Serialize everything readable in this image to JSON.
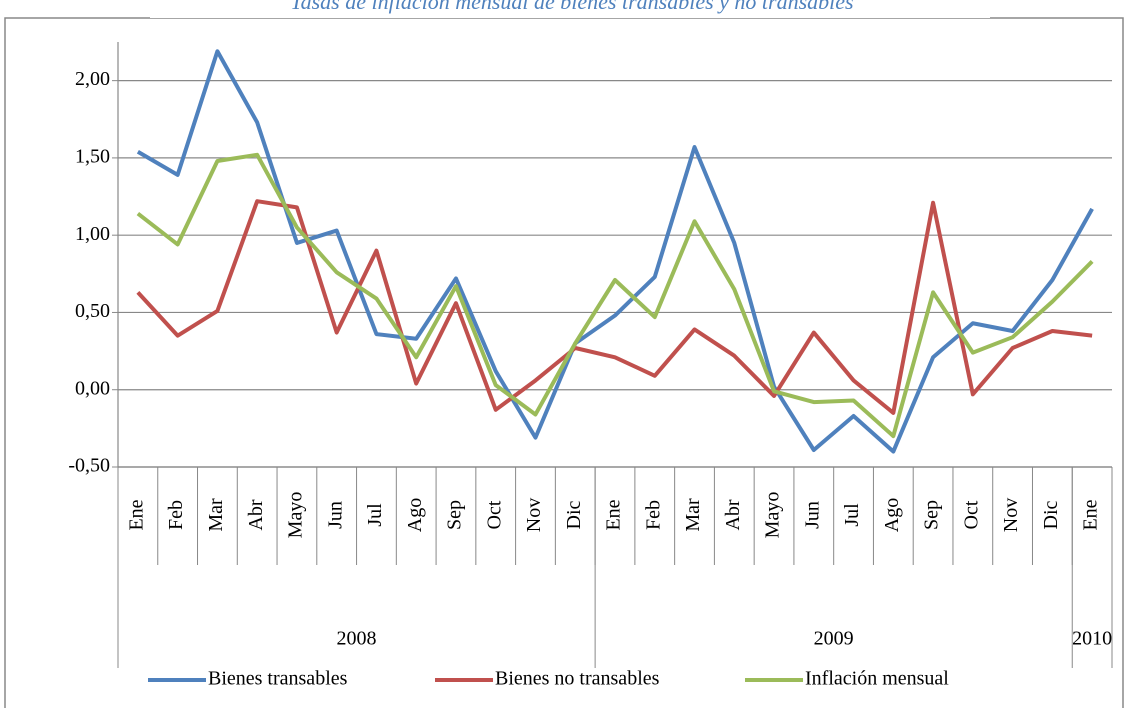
{
  "chart_data": {
    "type": "line",
    "title": "Tasas de inflación mensual de bienes transables y no transables",
    "categories": [
      "Ene",
      "Feb",
      "Mar",
      "Abr",
      "Mayo",
      "Jun",
      "Jul",
      "Ago",
      "Sep",
      "Oct",
      "Nov",
      "Dic",
      "Ene",
      "Feb",
      "Mar",
      "Abr",
      "Mayo",
      "Jun",
      "Jul",
      "Ago",
      "Sep",
      "Oct",
      "Nov",
      "Dic",
      "Ene"
    ],
    "year_groups": [
      {
        "label": "2008",
        "span": 12
      },
      {
        "label": "2009",
        "span": 12
      },
      {
        "label": "2010",
        "span": 1
      }
    ],
    "series": [
      {
        "name": "Bienes transables",
        "color": "#4f81bd",
        "values": [
          1.54,
          1.39,
          2.19,
          1.73,
          0.95,
          1.03,
          0.36,
          0.33,
          0.72,
          0.12,
          -0.31,
          0.3,
          0.48,
          0.73,
          1.57,
          0.95,
          0.02,
          -0.39,
          -0.17,
          -0.4,
          0.21,
          0.43,
          0.38,
          0.71,
          1.17
        ]
      },
      {
        "name": "Bienes no transables",
        "color": "#c0504d",
        "values": [
          0.63,
          0.35,
          0.51,
          1.22,
          1.18,
          0.37,
          0.9,
          0.04,
          0.56,
          -0.13,
          0.06,
          0.27,
          0.21,
          0.09,
          0.39,
          0.22,
          -0.04,
          0.37,
          0.06,
          -0.15,
          1.21,
          -0.03,
          0.27,
          0.38,
          0.35
        ]
      },
      {
        "name": "Inflación mensual",
        "color": "#9bbb59",
        "values": [
          1.14,
          0.94,
          1.48,
          1.52,
          1.05,
          0.76,
          0.59,
          0.21,
          0.67,
          0.03,
          -0.16,
          0.3,
          0.71,
          0.47,
          1.09,
          0.65,
          -0.01,
          -0.08,
          -0.07,
          -0.3,
          0.63,
          0.24,
          0.34,
          0.57,
          0.83
        ]
      }
    ],
    "ylim": [
      -0.5,
      2.25
    ],
    "yticks": [
      {
        "value": -0.5,
        "label": "-0,50"
      },
      {
        "value": 0,
        "label": "0,00"
      },
      {
        "value": 0.5,
        "label": "0,50"
      },
      {
        "value": 1,
        "label": "1,00"
      },
      {
        "value": 1.5,
        "label": "1,50"
      },
      {
        "value": 2,
        "label": "2,00"
      }
    ],
    "grid": true,
    "legend": "bottom"
  }
}
